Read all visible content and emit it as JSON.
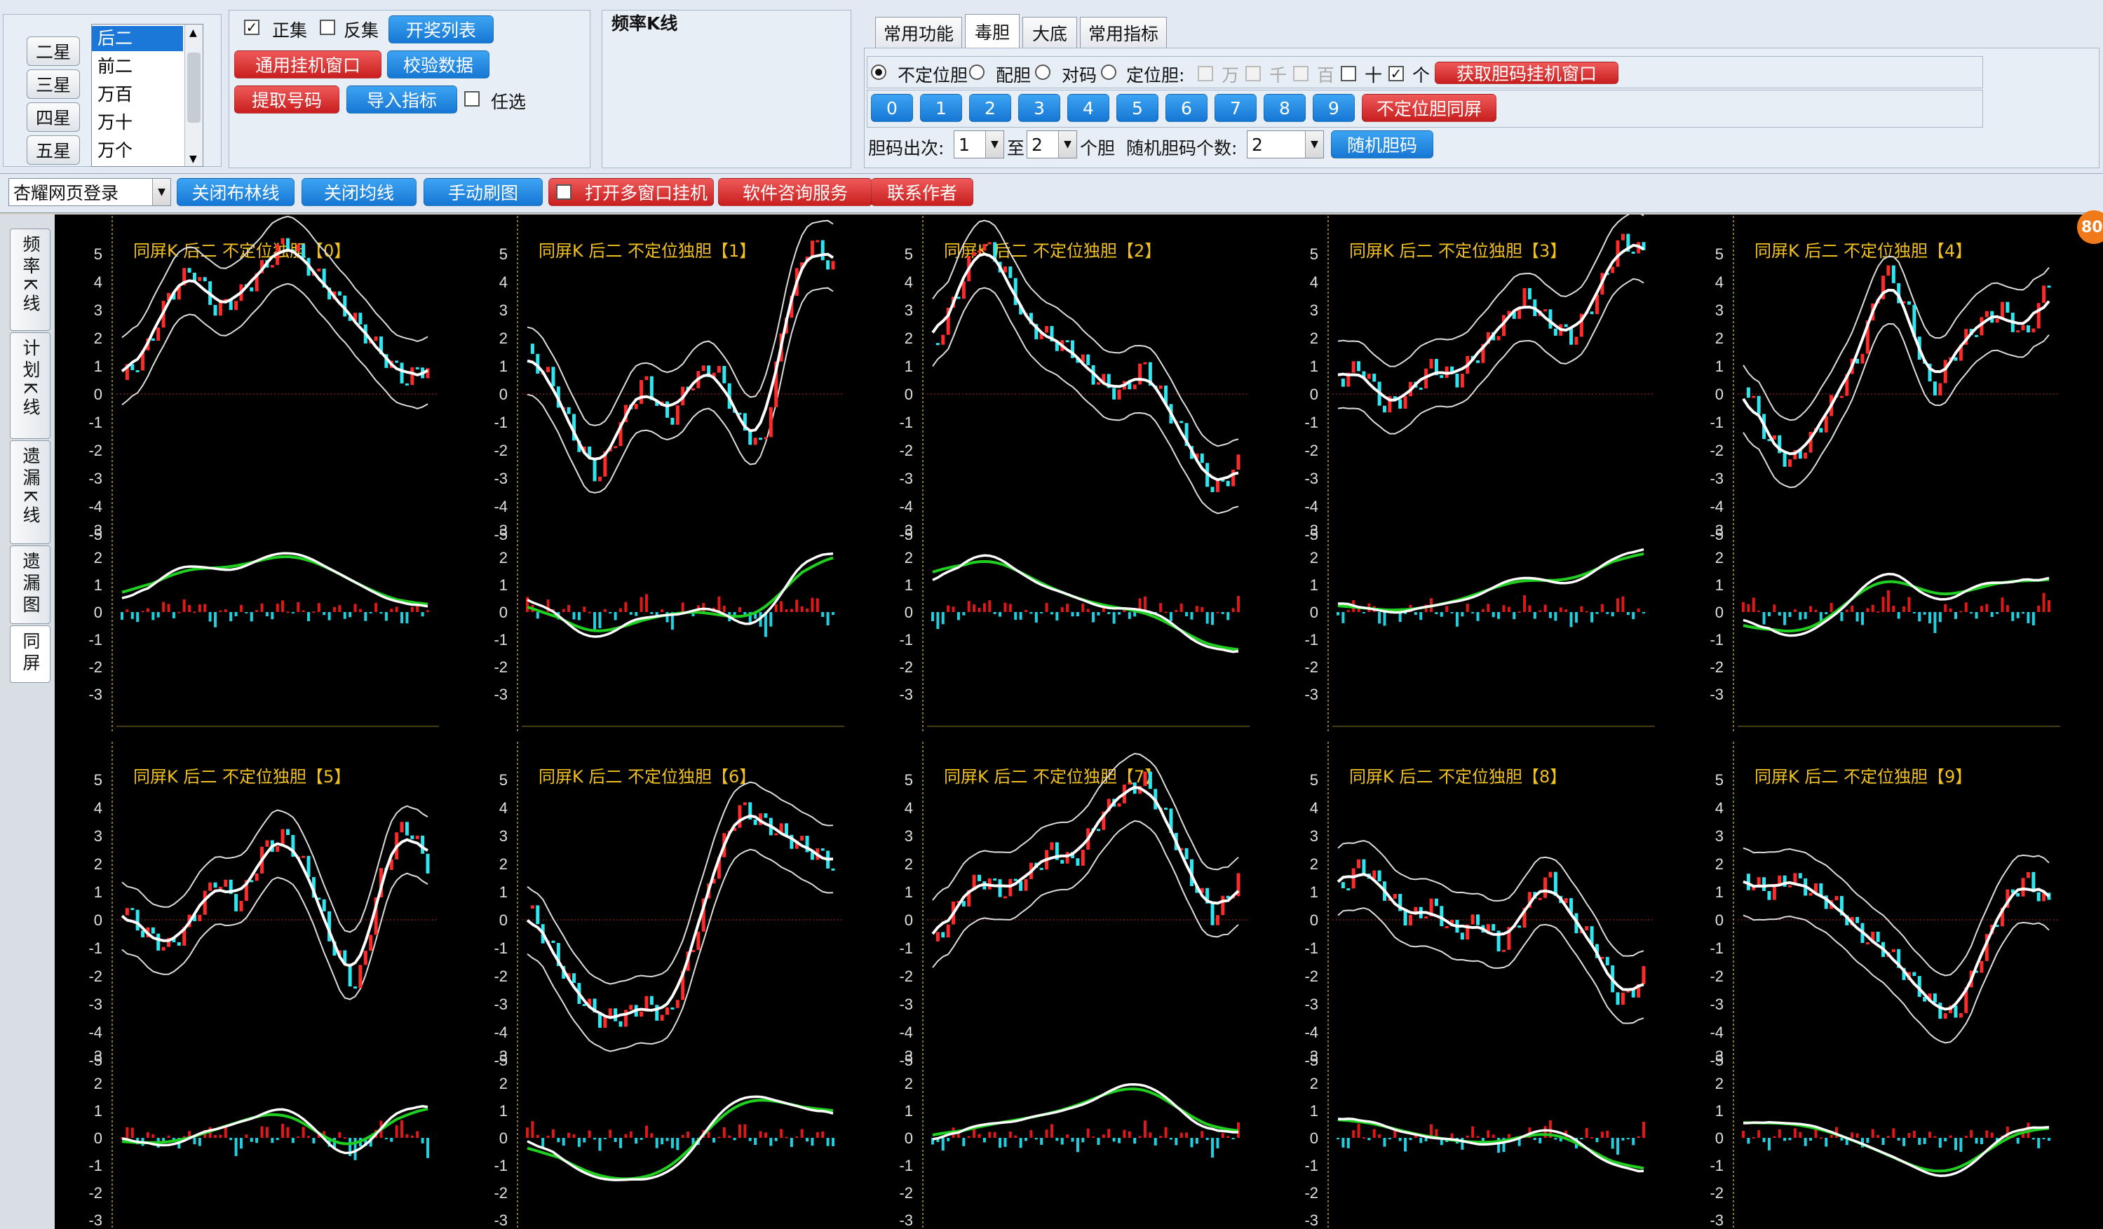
{
  "toolbar": {
    "star_buttons": [
      "二星",
      "三星",
      "四星",
      "五星"
    ],
    "position_list": [
      "后二",
      "前二",
      "万百",
      "万十",
      "万个"
    ],
    "zhengji": "正集",
    "fanji": "反集",
    "kaijiang": "开奖列表",
    "guaji": "通用挂机窗口",
    "jiaoyan": "校验数据",
    "tiqu": "提取号码",
    "daoru": "导入指标",
    "renxuan": "任选",
    "title": "频率K线"
  },
  "tabs": [
    "常用功能",
    "毒胆",
    "大底",
    "常用指标"
  ],
  "dudan": {
    "modes": [
      "不定位胆",
      "配胆",
      "对码",
      "定位胆:"
    ],
    "positions": [
      "万",
      "千",
      "百",
      "十",
      "个"
    ],
    "get_btn": "获取胆码挂机窗口",
    "numbers": [
      "0",
      "1",
      "2",
      "3",
      "4",
      "5",
      "6",
      "7",
      "8",
      "9"
    ],
    "tongping": "不定位胆同屏",
    "times_label": "胆码出次:",
    "times_from": "1",
    "to": "至",
    "times_to": "2",
    "unit": "个胆",
    "rand_label": "随机胆码个数:",
    "rand_val": "2",
    "rand_btn": "随机胆码"
  },
  "second": {
    "login": "杏耀网页登录",
    "b1": "关闭布林线",
    "b2": "关闭均线",
    "b3": "手动刷图",
    "b4": "打开多窗口挂机",
    "b5": "软件咨询服务",
    "b6": "联系作者"
  },
  "sidebar": [
    "频率K线",
    "计划K线",
    "遗漏K线",
    "遗漏图",
    "同屏"
  ],
  "badge": "80",
  "chart_data": {
    "type": "candlestick-grid",
    "title_template": "同屏K 后二 不定位独胆【N】",
    "titles": [
      "同屏K 后二 不定位独胆【0】",
      "同屏K 后二 不定位独胆【1】",
      "同屏K 后二 不定位独胆【2】",
      "同屏K 后二 不定位独胆【3】",
      "同屏K 后二 不定位独胆【4】",
      "同屏K 后二 不定位独胆【5】",
      "同屏K 后二 不定位独胆【6】",
      "同屏K 后二 不定位独胆【7】",
      "同屏K 后二 不定位独胆【8】",
      "同屏K 后二 不定位独胆【9】"
    ],
    "upper_ylim": [
      -5,
      5
    ],
    "lower_ylim": [
      -3,
      3
    ],
    "upper_ticks": [
      "5",
      "4",
      "3",
      "2",
      "1",
      "0",
      "-1",
      "-2",
      "-3",
      "-4",
      "-5"
    ],
    "lower_ticks": [
      "3",
      "2",
      "1",
      "0",
      "-1",
      "-2",
      "-3"
    ],
    "series": [
      [
        0.5,
        1.5,
        3.5,
        4.5,
        3,
        3.5,
        4.5,
        5.5,
        4.5,
        3.5,
        2.5,
        1.5,
        0.5,
        1
      ],
      [
        1.5,
        0.5,
        -1.5,
        -3,
        -1,
        0.5,
        -1,
        0.5,
        1,
        -1,
        -2,
        3,
        5.5,
        4.5
      ],
      [
        1.5,
        3.5,
        5.5,
        4.5,
        2.5,
        2,
        1.5,
        0.5,
        0,
        1,
        -0.5,
        -2,
        -3.5,
        -2.5
      ],
      [
        0.5,
        1,
        -0.5,
        0,
        1,
        0.5,
        1.5,
        2.5,
        3.5,
        2.5,
        2,
        3.5,
        5.5,
        5
      ],
      [
        0.5,
        -1.5,
        -2.5,
        -1.5,
        0,
        1.5,
        4.5,
        3,
        0,
        1.5,
        2.5,
        3,
        2,
        4
      ],
      [
        0.5,
        -0.5,
        -1,
        0,
        1.5,
        0.5,
        2.5,
        3,
        1.5,
        -1,
        -2.5,
        1.5,
        3.5,
        2
      ],
      [
        0.5,
        -1,
        -2.5,
        -3.5,
        -3.5,
        -3,
        -3.5,
        -1,
        2,
        4,
        3.5,
        3,
        2.5,
        2
      ],
      [
        -1,
        0.5,
        1.5,
        1,
        1.5,
        2.5,
        2,
        3.5,
        4.5,
        5,
        3.5,
        1.5,
        0,
        1.5
      ],
      [
        1,
        2,
        1,
        0,
        0.5,
        -0.5,
        0,
        -1,
        0.5,
        1.5,
        0,
        -1,
        -3,
        -2
      ],
      [
        1.5,
        1,
        1.5,
        1,
        0.5,
        -0.5,
        -1,
        -2,
        -3,
        -3.5,
        -1.5,
        0.5,
        1.5,
        0.5
      ]
    ]
  }
}
